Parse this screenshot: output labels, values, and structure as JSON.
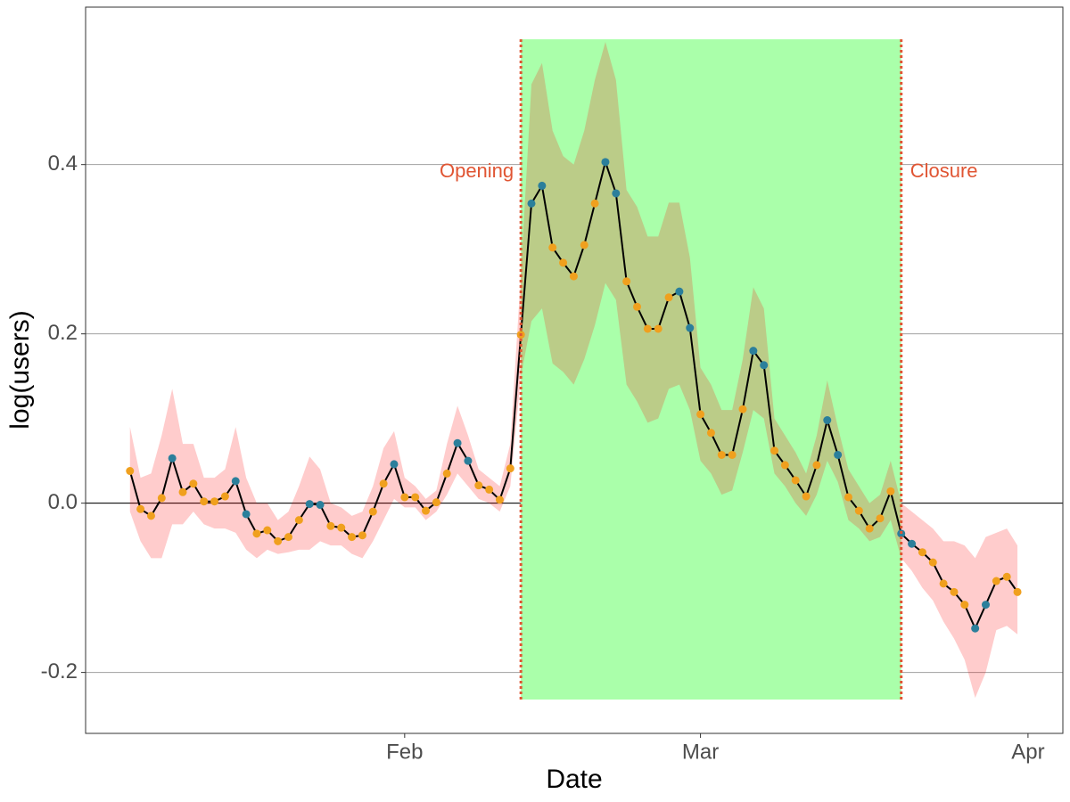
{
  "chart_data": {
    "type": "line",
    "xlabel": "Date",
    "ylabel": "log(users)",
    "x": [
      6,
      7,
      8,
      9,
      10,
      11,
      12,
      13,
      14,
      15,
      16,
      17,
      18,
      19,
      20,
      21,
      22,
      23,
      24,
      25,
      26,
      27,
      28,
      29,
      30,
      31,
      32,
      33,
      34,
      35,
      36,
      37,
      38,
      39,
      40,
      41,
      42,
      43,
      44,
      45,
      46,
      47,
      48,
      49,
      50,
      51,
      52,
      53,
      54,
      55,
      56,
      57,
      58,
      59,
      60,
      61,
      62,
      63,
      64,
      65,
      66,
      67,
      68,
      69,
      70,
      71,
      72,
      73,
      74,
      75,
      76,
      77,
      78,
      79,
      80,
      81,
      82,
      83,
      84,
      85,
      86,
      87,
      88,
      89,
      90
    ],
    "values": [
      0.038,
      -0.007,
      -0.015,
      0.006,
      0.053,
      0.013,
      0.023,
      0.002,
      0.002,
      0.008,
      0.026,
      -0.013,
      -0.036,
      -0.032,
      -0.045,
      -0.04,
      -0.02,
      -0.001,
      -0.002,
      -0.027,
      -0.029,
      -0.04,
      -0.038,
      -0.01,
      0.023,
      0.046,
      0.007,
      0.007,
      -0.009,
      0.001,
      0.035,
      0.071,
      0.05,
      0.021,
      0.016,
      0.004,
      0.041,
      0.199,
      0.354,
      0.375,
      0.302,
      0.284,
      0.268,
      0.305,
      0.354,
      0.403,
      0.366,
      0.262,
      0.232,
      0.206,
      0.206,
      0.243,
      0.25,
      0.207,
      0.105,
      0.083,
      0.057,
      0.057,
      0.111,
      0.18,
      0.163,
      0.062,
      0.045,
      0.027,
      0.008,
      0.045,
      0.098,
      0.057,
      0.007,
      -0.009,
      -0.03,
      -0.018,
      0.014,
      -0.036,
      -0.048,
      -0.058,
      -0.07,
      -0.095,
      -0.105,
      -0.12,
      -0.148,
      -0.12,
      -0.092,
      -0.087,
      -0.105
    ],
    "upper": [
      0.09,
      0.03,
      0.035,
      0.08,
      0.135,
      0.07,
      0.07,
      0.03,
      0.03,
      0.04,
      0.09,
      0.03,
      0.0,
      0.0,
      -0.02,
      -0.01,
      0.02,
      0.055,
      0.04,
      0.0,
      -0.005,
      -0.015,
      -0.01,
      0.02,
      0.065,
      0.085,
      0.03,
      0.02,
      0.005,
      0.015,
      0.07,
      0.115,
      0.08,
      0.04,
      0.03,
      0.02,
      0.07,
      0.27,
      0.495,
      0.52,
      0.44,
      0.41,
      0.4,
      0.44,
      0.5,
      0.545,
      0.5,
      0.37,
      0.35,
      0.315,
      0.315,
      0.355,
      0.355,
      0.29,
      0.16,
      0.14,
      0.11,
      0.11,
      0.17,
      0.255,
      0.23,
      0.1,
      0.08,
      0.06,
      0.035,
      0.08,
      0.145,
      0.09,
      0.04,
      0.02,
      0.0,
      0.01,
      0.05,
      0.0,
      -0.01,
      -0.02,
      -0.03,
      -0.045,
      -0.045,
      -0.05,
      -0.065,
      -0.04,
      -0.035,
      -0.03,
      -0.05
    ],
    "lower": [
      -0.01,
      -0.045,
      -0.065,
      -0.065,
      -0.025,
      -0.025,
      -0.01,
      -0.025,
      -0.03,
      -0.03,
      -0.035,
      -0.055,
      -0.065,
      -0.055,
      -0.06,
      -0.058,
      -0.055,
      -0.055,
      -0.045,
      -0.05,
      -0.05,
      -0.06,
      -0.065,
      -0.045,
      -0.02,
      0.005,
      -0.005,
      -0.005,
      -0.02,
      -0.01,
      0.01,
      0.035,
      0.02,
      0.005,
      0.0,
      -0.01,
      0.02,
      0.15,
      0.215,
      0.23,
      0.165,
      0.155,
      0.14,
      0.17,
      0.21,
      0.26,
      0.24,
      0.14,
      0.12,
      0.095,
      0.1,
      0.135,
      0.14,
      0.11,
      0.05,
      0.035,
      0.01,
      0.015,
      0.06,
      0.11,
      0.1,
      0.035,
      0.02,
      0.0,
      -0.015,
      0.01,
      0.05,
      0.025,
      -0.02,
      -0.03,
      -0.045,
      -0.04,
      -0.02,
      -0.065,
      -0.08,
      -0.1,
      -0.115,
      -0.14,
      -0.16,
      -0.185,
      -0.23,
      -0.2,
      -0.15,
      -0.145,
      -0.155
    ],
    "marker_colors": [
      "#f0a01e",
      "#f0a01e",
      "#f0a01e",
      "#f0a01e",
      "#2b7f9b",
      "#f0a01e",
      "#f0a01e",
      "#f0a01e",
      "#f0a01e",
      "#f0a01e",
      "#2b7f9b",
      "#2b7f9b",
      "#f0a01e",
      "#f0a01e",
      "#f0a01e",
      "#f0a01e",
      "#f0a01e",
      "#2b7f9b",
      "#2b7f9b",
      "#f0a01e",
      "#f0a01e",
      "#f0a01e",
      "#f0a01e",
      "#f0a01e",
      "#f0a01e",
      "#2b7f9b",
      "#f0a01e",
      "#f0a01e",
      "#f0a01e",
      "#f0a01e",
      "#f0a01e",
      "#2b7f9b",
      "#2b7f9b",
      "#f0a01e",
      "#f0a01e",
      "#f0a01e",
      "#f0a01e",
      "#f0a01e",
      "#2b7f9b",
      "#2b7f9b",
      "#f0a01e",
      "#f0a01e",
      "#f0a01e",
      "#f0a01e",
      "#f0a01e",
      "#2b7f9b",
      "#2b7f9b",
      "#f0a01e",
      "#f0a01e",
      "#f0a01e",
      "#f0a01e",
      "#f0a01e",
      "#2b7f9b",
      "#2b7f9b",
      "#f0a01e",
      "#f0a01e",
      "#f0a01e",
      "#f0a01e",
      "#f0a01e",
      "#2b7f9b",
      "#2b7f9b",
      "#f0a01e",
      "#f0a01e",
      "#f0a01e",
      "#f0a01e",
      "#f0a01e",
      "#2b7f9b",
      "#2b7f9b",
      "#f0a01e",
      "#f0a01e",
      "#f0a01e",
      "#f0a01e",
      "#f0a01e",
      "#2b7f9b",
      "#2b7f9b",
      "#f0a01e",
      "#f0a01e",
      "#f0a01e",
      "#f0a01e",
      "#f0a01e",
      "#2b7f9b",
      "#2b7f9b",
      "#f0a01e",
      "#f0a01e",
      "#f0a01e"
    ],
    "color": "#000000",
    "ribbon_color": "#ff0000",
    "shaded_region": {
      "x": [
        43,
        79
      ],
      "y": [
        -0.232,
        0.548
      ],
      "color": "#aaffaa",
      "line_color": "#e05533"
    },
    "annotations": [
      "Opening",
      "Closure"
    ],
    "xlim": [
      1.8,
      94.3
    ],
    "xticks": [
      {
        "value": 32,
        "label": "Feb"
      },
      {
        "value": 60,
        "label": "Mar"
      },
      {
        "value": 91,
        "label": "Apr"
      }
    ],
    "ylim": [
      -0.272,
      0.586
    ],
    "yticks": [
      -0.2,
      {
        "value": 0,
        "label": "0.0"
      },
      0.2,
      0.4
    ],
    "grid": true
  }
}
